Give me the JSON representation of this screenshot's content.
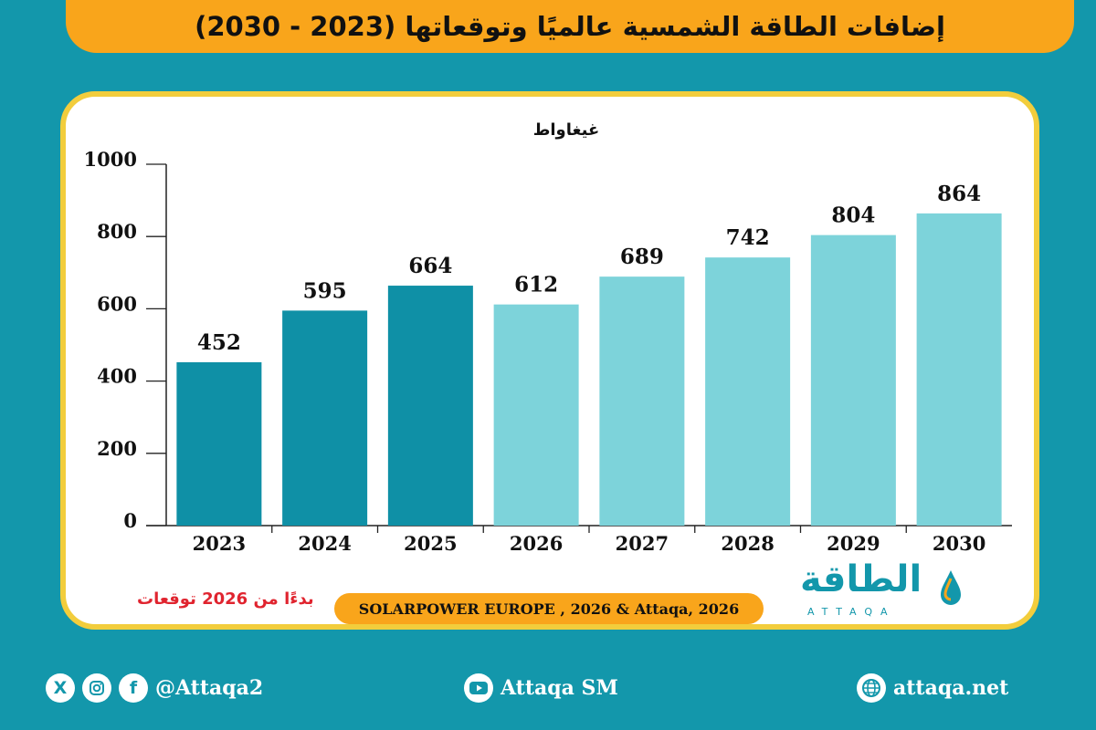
{
  "header": {
    "title": "إضافات الطاقة الشمسية عالميًا وتوقعاتها (2023 - 2030)"
  },
  "chart_data": {
    "type": "bar",
    "ylabel": "غيغاواط",
    "categories": [
      "2023",
      "2024",
      "2025",
      "2026",
      "2027",
      "2028",
      "2029",
      "2030"
    ],
    "values": [
      452,
      595,
      664,
      612,
      689,
      742,
      804,
      864
    ],
    "value_labels": [
      "452",
      "595",
      "664",
      "612",
      "689",
      "742",
      "804",
      "864"
    ],
    "yticks": [
      "0",
      "200",
      "400",
      "600",
      "800",
      "1000"
    ],
    "ylim": [
      0,
      1000
    ],
    "forecast_from": "2026",
    "colors": {
      "actual": "#0f90a6",
      "forecast": "#7dd3da"
    },
    "grid": false
  },
  "note": "بدءًا من 2026 توقعات",
  "source": "SOLARPOWER EUROPE , 2026 & Attaqa, 2026",
  "logo": {
    "arabic": "الطاقة",
    "latin": "ATTAQA"
  },
  "footer": {
    "social_handle": "@Attaqa2",
    "youtube": "Attaqa SM",
    "website": "attaqa.net"
  },
  "colors": {
    "background": "#1397ab",
    "accent": "#f9a51b",
    "frame": "#f2cd3c"
  },
  "icons": [
    "x-icon",
    "instagram-icon",
    "facebook-icon",
    "youtube-icon",
    "globe-icon"
  ]
}
